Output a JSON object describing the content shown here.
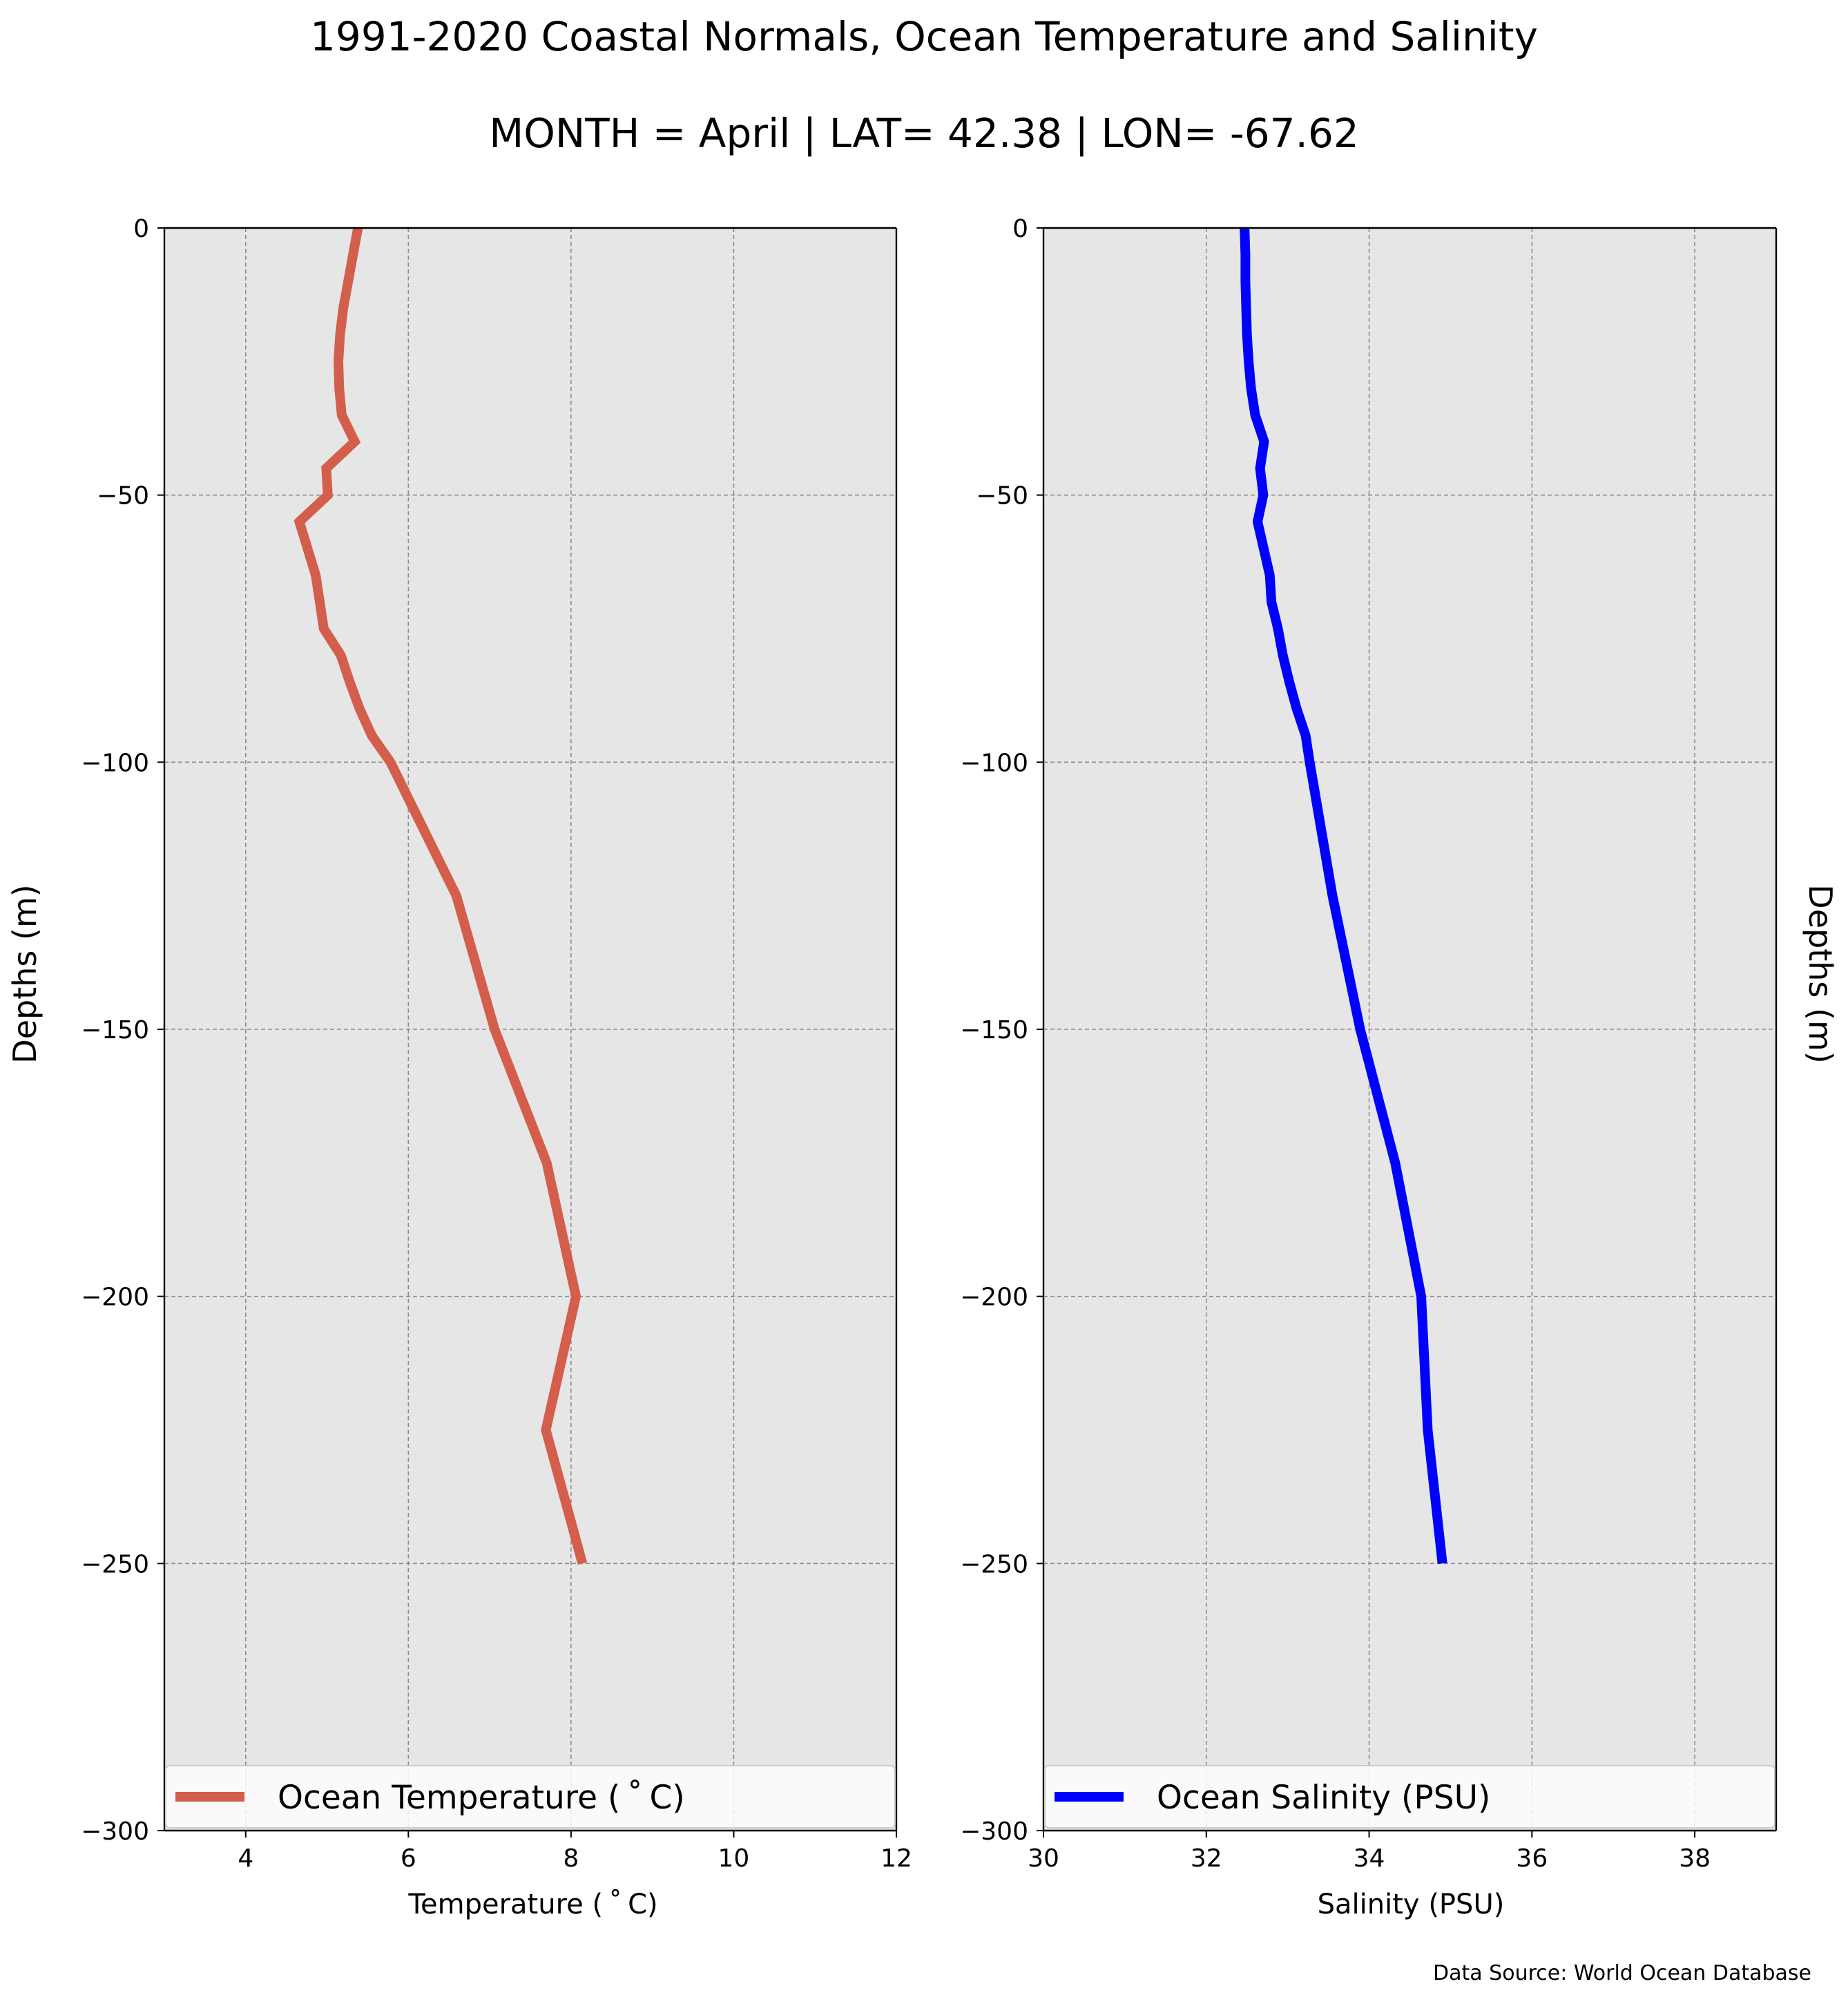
{
  "figure": {
    "title_line1": "1991-2020 Coastal Normals, Ocean Temperature and Salinity",
    "title_line2": "MONTH = April | LAT= 42.38 | LON= -67.62",
    "source": "Data Source: World Ocean Database"
  },
  "chart_data": [
    {
      "type": "line",
      "title": "",
      "xlabel": "Temperature ($^\\circ$C)",
      "xlabel_display": "Temperature ( ˚ C)",
      "ylabel": "Depths (m)",
      "xlim": [
        3,
        12
      ],
      "ylim": [
        -300,
        0
      ],
      "xticks": [
        4,
        6,
        8,
        10,
        12
      ],
      "yticks": [
        0,
        -50,
        -100,
        -150,
        -200,
        -250,
        -300
      ],
      "ytick_labels": [
        "0",
        "−50",
        "−100",
        "−150",
        "−200",
        "−250",
        "−300"
      ],
      "grid": true,
      "legend": "lower center",
      "series": [
        {
          "name": "Ocean Temperature ($^\\circ$C)",
          "display_name": "Ocean Temperature ( ˚ C)",
          "color": "#d45e4c",
          "x": [
            5.38,
            5.32,
            5.26,
            5.2,
            5.16,
            5.14,
            5.15,
            5.18,
            5.34,
            4.99,
            5.01,
            4.66,
            4.86,
            4.91,
            4.96,
            5.17,
            5.28,
            5.4,
            5.55,
            5.78,
            6.59,
            7.06,
            7.7,
            8.06,
            7.69,
            8.14
          ],
          "y": [
            0,
            -5,
            -10,
            -15,
            -20,
            -25,
            -30,
            -35,
            -40,
            -45,
            -50,
            -55,
            -65,
            -70,
            -75,
            -80,
            -85,
            -90,
            -95,
            -100,
            -125,
            -150,
            -175,
            -200,
            -225,
            -250
          ]
        }
      ]
    },
    {
      "type": "line",
      "title": "",
      "xlabel": "Salinity (PSU)",
      "ylabel": "Depths (m)",
      "xlim": [
        30,
        39
      ],
      "ylim": [
        -300,
        0
      ],
      "xticks": [
        30,
        32,
        34,
        36,
        38
      ],
      "yticks": [
        0,
        -50,
        -100,
        -150,
        -200,
        -250,
        -300
      ],
      "ytick_labels": [
        "0",
        "−50",
        "−100",
        "−150",
        "−200",
        "−250",
        "−300"
      ],
      "grid": true,
      "legend": "lower center",
      "series": [
        {
          "name": "Ocean Salinity (PSU)",
          "color": "#0000ff",
          "x": [
            32.47,
            32.48,
            32.48,
            32.49,
            32.5,
            32.52,
            32.55,
            32.6,
            32.71,
            32.66,
            32.7,
            32.63,
            32.78,
            32.8,
            32.88,
            32.94,
            33.02,
            33.11,
            33.22,
            33.27,
            33.55,
            33.89,
            34.32,
            34.64,
            34.72,
            34.9
          ],
          "y": [
            0,
            -5,
            -10,
            -15,
            -20,
            -25,
            -30,
            -35,
            -40,
            -45,
            -50,
            -55,
            -65,
            -70,
            -75,
            -80,
            -85,
            -90,
            -95,
            -100,
            -125,
            -150,
            -175,
            -200,
            -225,
            -250
          ]
        }
      ]
    }
  ]
}
